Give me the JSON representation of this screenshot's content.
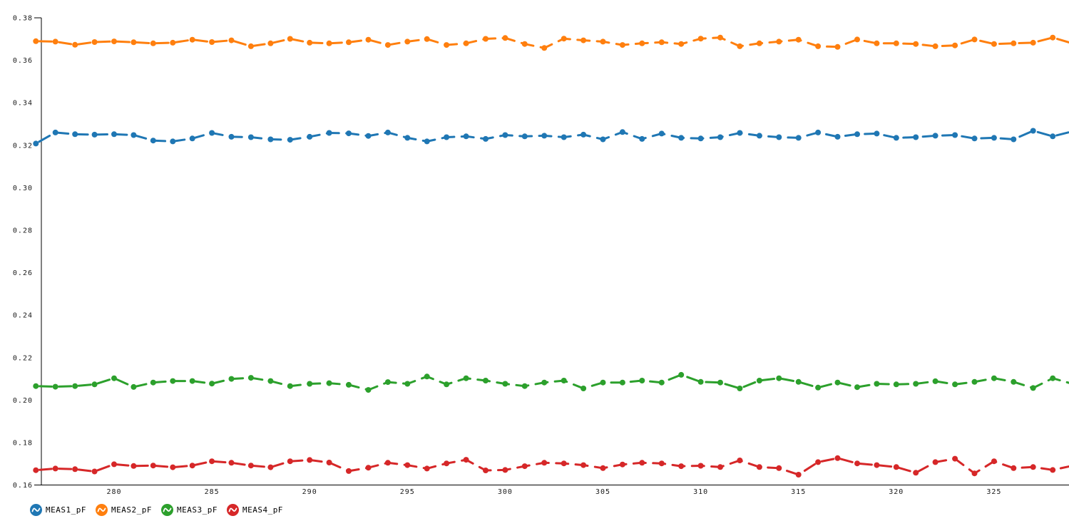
{
  "chart_data": {
    "type": "line",
    "title": "",
    "xlabel": "",
    "ylabel": "",
    "line_style": "dashed-with-round-markers",
    "grid": false,
    "legend_position": "bottom-left",
    "axis_color": "#000000",
    "label_color": "#1a1a1a",
    "x_range": [
      276,
      329
    ],
    "y_range": [
      0.16,
      0.38
    ],
    "x_ticks": [
      "280",
      "285",
      "290",
      "295",
      "300",
      "305",
      "310",
      "315",
      "320",
      "325"
    ],
    "y_ticks": [
      "0.38",
      "0.36",
      "0.34",
      "0.32",
      "0.30",
      "0.28",
      "0.26",
      "0.24",
      "0.22",
      "0.20",
      "0.18",
      "0.16"
    ],
    "x": [
      276,
      277,
      278,
      279,
      280,
      281,
      282,
      283,
      284,
      285,
      286,
      287,
      288,
      289,
      290,
      291,
      292,
      293,
      294,
      295,
      296,
      297,
      298,
      299,
      300,
      301,
      302,
      303,
      304,
      305,
      306,
      307,
      308,
      309,
      310,
      311,
      312,
      313,
      314,
      315,
      316,
      317,
      318,
      319,
      320,
      321,
      322,
      323,
      324,
      325,
      326,
      327,
      328,
      329
    ],
    "series": [
      {
        "name": "MEAS1_pF",
        "color": "#1f77b4",
        "values": [
          0.3208,
          0.326,
          0.3252,
          0.325,
          0.3252,
          0.3248,
          0.3222,
          0.3218,
          0.3232,
          0.3258,
          0.324,
          0.3238,
          0.3228,
          0.3226,
          0.324,
          0.3258,
          0.3256,
          0.3244,
          0.326,
          0.3235,
          0.3218,
          0.3238,
          0.3242,
          0.323,
          0.3248,
          0.3242,
          0.3245,
          0.3238,
          0.325,
          0.3228,
          0.3262,
          0.323,
          0.3255,
          0.3235,
          0.3232,
          0.3238,
          0.3258,
          0.3245,
          0.3238,
          0.3235,
          0.326,
          0.324,
          0.3252,
          0.3255,
          0.3235,
          0.3238,
          0.3245,
          0.3248,
          0.3232,
          0.3235,
          0.3228,
          0.3268,
          0.3242,
          0.3265
        ]
      },
      {
        "name": "MEAS2_pF",
        "color": "#ff7f0e",
        "values": [
          0.369,
          0.3688,
          0.3673,
          0.3686,
          0.3689,
          0.3685,
          0.368,
          0.3683,
          0.3697,
          0.3686,
          0.3694,
          0.3666,
          0.368,
          0.3701,
          0.3683,
          0.368,
          0.3685,
          0.3697,
          0.3672,
          0.3688,
          0.37,
          0.3672,
          0.368,
          0.3701,
          0.3705,
          0.3677,
          0.3658,
          0.3702,
          0.3694,
          0.3688,
          0.3672,
          0.368,
          0.3685,
          0.3677,
          0.3702,
          0.3707,
          0.3666,
          0.368,
          0.3688,
          0.3697,
          0.3666,
          0.3663,
          0.3698,
          0.368,
          0.368,
          0.3677,
          0.3666,
          0.367,
          0.3698,
          0.3677,
          0.368,
          0.3683,
          0.3707,
          0.368
        ]
      },
      {
        "name": "MEAS3_pF",
        "color": "#2ca02c",
        "values": [
          0.2066,
          0.2063,
          0.2066,
          0.2074,
          0.2103,
          0.2062,
          0.2083,
          0.209,
          0.209,
          0.2078,
          0.21,
          0.2105,
          0.209,
          0.2066,
          0.2077,
          0.208,
          0.2072,
          0.2048,
          0.2085,
          0.2077,
          0.2111,
          0.2074,
          0.2103,
          0.2092,
          0.2077,
          0.2066,
          0.2083,
          0.2092,
          0.2055,
          0.2083,
          0.2083,
          0.2092,
          0.2083,
          0.2119,
          0.2086,
          0.2083,
          0.2055,
          0.2092,
          0.2103,
          0.2086,
          0.2059,
          0.2083,
          0.2061,
          0.2077,
          0.2074,
          0.2077,
          0.2089,
          0.2074,
          0.2086,
          0.2103,
          0.2086,
          0.2057,
          0.2103,
          0.2077
        ]
      },
      {
        "name": "MEAS4_pF",
        "color": "#d62728",
        "values": [
          0.167,
          0.1678,
          0.1675,
          0.1664,
          0.1698,
          0.169,
          0.1692,
          0.1684,
          0.1692,
          0.1712,
          0.1705,
          0.1692,
          0.1684,
          0.1712,
          0.1718,
          0.1706,
          0.1666,
          0.1682,
          0.1705,
          0.1694,
          0.1678,
          0.1702,
          0.1719,
          0.1669,
          0.1671,
          0.1689,
          0.1705,
          0.1702,
          0.1694,
          0.168,
          0.1697,
          0.1705,
          0.1702,
          0.1689,
          0.1691,
          0.1685,
          0.1716,
          0.1685,
          0.168,
          0.1649,
          0.1708,
          0.1727,
          0.1702,
          0.1694,
          0.1685,
          0.1658,
          0.1708,
          0.1724,
          0.1655,
          0.1712,
          0.168,
          0.1685,
          0.1671,
          0.1691
        ]
      }
    ]
  },
  "legend": {
    "items": [
      {
        "label": "MEAS1_pF",
        "color": "#1f77b4"
      },
      {
        "label": "MEAS2_pF",
        "color": "#ff7f0e"
      },
      {
        "label": "MEAS3_pF",
        "color": "#2ca02c"
      },
      {
        "label": "MEAS4_pF",
        "color": "#d62728"
      }
    ]
  }
}
